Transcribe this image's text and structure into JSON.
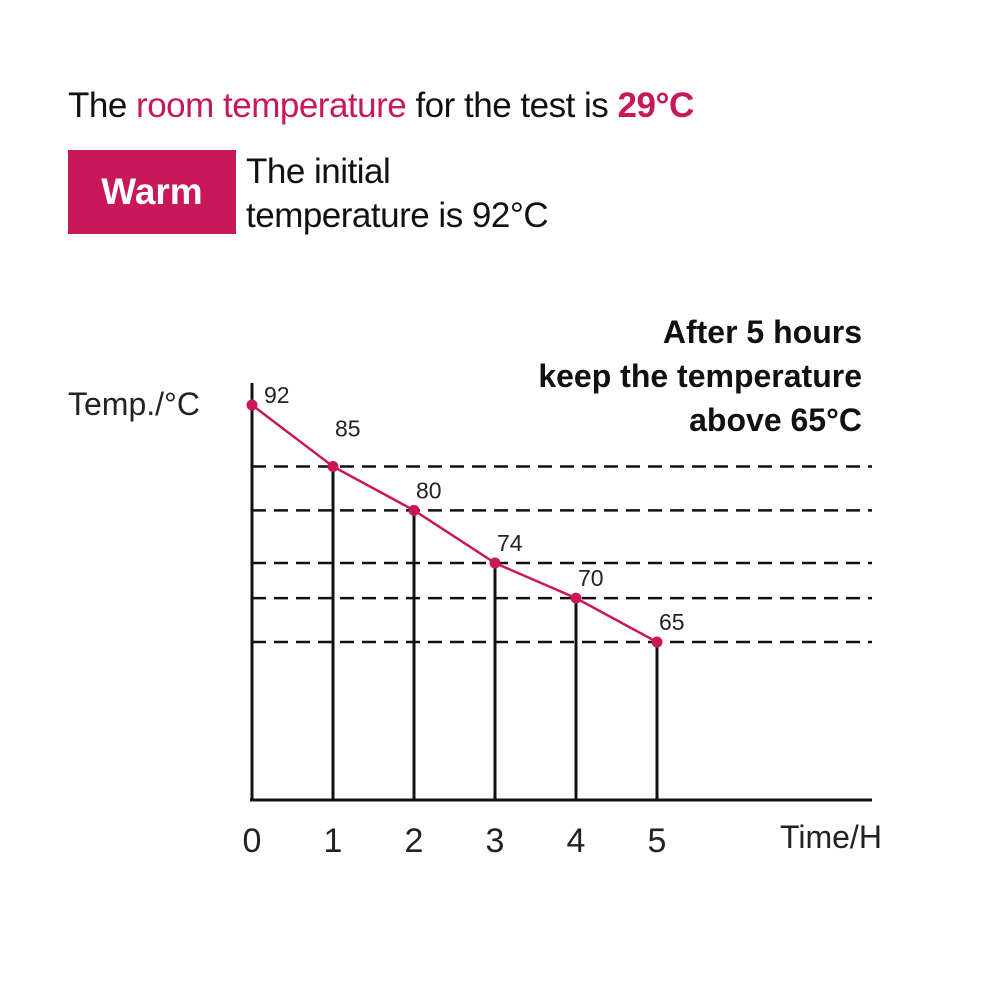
{
  "header": {
    "prefix": "The ",
    "highlight": "room temperature",
    "middle": " for the test is ",
    "value": "29°C"
  },
  "badge": {
    "label": "Warm"
  },
  "initial": {
    "line1": "The initial",
    "line2": "temperature is 92°C"
  },
  "colors": {
    "accent": "#c8175a",
    "axis": "#111111"
  },
  "chart_data": {
    "type": "line",
    "x": [
      0,
      1,
      2,
      3,
      4,
      5
    ],
    "values": [
      92,
      85,
      80,
      74,
      70,
      65
    ],
    "data_labels": [
      "92",
      "85",
      "80",
      "74",
      "70",
      "65"
    ],
    "x_tick_labels": [
      "0",
      "1",
      "2",
      "3",
      "4",
      "5"
    ],
    "xlabel": "Time/H",
    "ylabel": "Temp./°C",
    "annotation": [
      "After 5 hours",
      "keep the temperature",
      "above 65°C"
    ],
    "grid": "dashed reference lines at each data value after t=0",
    "legend": "none"
  }
}
